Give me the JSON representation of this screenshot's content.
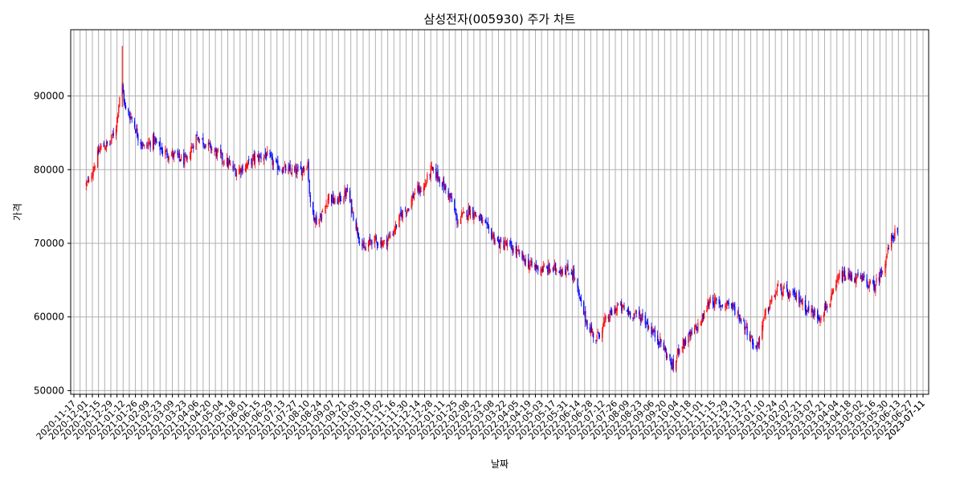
{
  "chart_data": {
    "type": "candlestick",
    "title": "삼성전자(005930) 주가 차트",
    "xlabel": "날짜",
    "ylabel": "가격",
    "ylim": [
      49500,
      99000
    ],
    "x_range": [
      "2020-11-17",
      "2023-07-11"
    ],
    "y_ticks": [
      50000,
      60000,
      70000,
      80000,
      90000
    ],
    "grid": true,
    "colors": {
      "up": "#ff0000",
      "down": "#0000ff",
      "grid": "#b0b0b0"
    },
    "first_x_tick": "2020-11-17",
    "last_x_tick": "2023-07-11",
    "close_anchors": [
      [
        "2020-12-01",
        78000
      ],
      [
        "2020-12-04",
        78300
      ],
      [
        "2020-12-10",
        80500
      ],
      [
        "2020-12-17",
        83000
      ],
      [
        "2020-12-28",
        83500
      ],
      [
        "2021-01-04",
        86000
      ],
      [
        "2021-01-08",
        90000
      ],
      [
        "2021-01-11",
        91000
      ],
      [
        "2021-01-15",
        88000
      ],
      [
        "2021-01-22",
        87000
      ],
      [
        "2021-01-29",
        84500
      ],
      [
        "2021-02-05",
        83000
      ],
      [
        "2021-02-15",
        84000
      ],
      [
        "2021-02-26",
        82500
      ],
      [
        "2021-03-10",
        82000
      ],
      [
        "2021-03-25",
        81000
      ],
      [
        "2021-04-05",
        84500
      ],
      [
        "2021-04-12",
        84000
      ],
      [
        "2021-04-26",
        82500
      ],
      [
        "2021-05-10",
        81000
      ],
      [
        "2021-05-20",
        79800
      ],
      [
        "2021-06-01",
        80500
      ],
      [
        "2021-06-10",
        81500
      ],
      [
        "2021-06-24",
        82000
      ],
      [
        "2021-07-05",
        80500
      ],
      [
        "2021-07-20",
        79800
      ],
      [
        "2021-08-02",
        79800
      ],
      [
        "2021-08-10",
        81000
      ],
      [
        "2021-08-13",
        75000
      ],
      [
        "2021-08-20",
        73000
      ],
      [
        "2021-08-27",
        74000
      ],
      [
        "2021-09-03",
        76500
      ],
      [
        "2021-09-10",
        75500
      ],
      [
        "2021-09-24",
        77000
      ],
      [
        "2021-10-06",
        71500
      ],
      [
        "2021-10-13",
        69000
      ],
      [
        "2021-10-22",
        70500
      ],
      [
        "2021-11-05",
        70000
      ],
      [
        "2021-11-15",
        71500
      ],
      [
        "2021-11-25",
        74000
      ],
      [
        "2021-12-03",
        75000
      ],
      [
        "2021-12-10",
        77000
      ],
      [
        "2021-12-20",
        77500
      ],
      [
        "2021-12-28",
        80000
      ],
      [
        "2022-01-06",
        79000
      ],
      [
        "2022-01-13",
        77500
      ],
      [
        "2022-01-20",
        76000
      ],
      [
        "2022-01-27",
        73000
      ],
      [
        "2022-02-10",
        74500
      ],
      [
        "2022-02-21",
        73500
      ],
      [
        "2022-03-02",
        72000
      ],
      [
        "2022-03-15",
        70000
      ],
      [
        "2022-03-25",
        69800
      ],
      [
        "2022-04-07",
        68500
      ],
      [
        "2022-04-20",
        67000
      ],
      [
        "2022-05-04",
        66500
      ],
      [
        "2022-05-16",
        66500
      ],
      [
        "2022-05-27",
        66500
      ],
      [
        "2022-06-08",
        66000
      ],
      [
        "2022-06-16",
        62000
      ],
      [
        "2022-06-24",
        59000
      ],
      [
        "2022-07-04",
        57000
      ],
      [
        "2022-07-15",
        59500
      ],
      [
        "2022-07-29",
        61500
      ],
      [
        "2022-08-12",
        60500
      ],
      [
        "2022-08-26",
        60000
      ],
      [
        "2022-09-06",
        58000
      ],
      [
        "2022-09-16",
        56500
      ],
      [
        "2022-09-26",
        54000
      ],
      [
        "2022-09-30",
        53000
      ],
      [
        "2022-10-07",
        56000
      ],
      [
        "2022-10-20",
        57500
      ],
      [
        "2022-11-01",
        59500
      ],
      [
        "2022-11-11",
        62500
      ],
      [
        "2022-11-21",
        61500
      ],
      [
        "2022-12-01",
        62000
      ],
      [
        "2022-12-12",
        60500
      ],
      [
        "2022-12-22",
        58500
      ],
      [
        "2023-01-02",
        55500
      ],
      [
        "2023-01-13",
        60500
      ],
      [
        "2023-01-27",
        64000
      ],
      [
        "2023-02-08",
        63000
      ],
      [
        "2023-02-20",
        62500
      ],
      [
        "2023-03-02",
        61000
      ],
      [
        "2023-03-15",
        60000
      ],
      [
        "2023-03-29",
        62500
      ],
      [
        "2023-04-07",
        65500
      ],
      [
        "2023-04-20",
        65500
      ],
      [
        "2023-05-04",
        65000
      ],
      [
        "2023-05-16",
        64000
      ],
      [
        "2023-05-24",
        66000
      ],
      [
        "2023-05-31",
        68500
      ],
      [
        "2023-06-05",
        70500
      ],
      [
        "2023-06-09",
        71500
      ],
      [
        "2023-06-12",
        71000
      ]
    ]
  }
}
